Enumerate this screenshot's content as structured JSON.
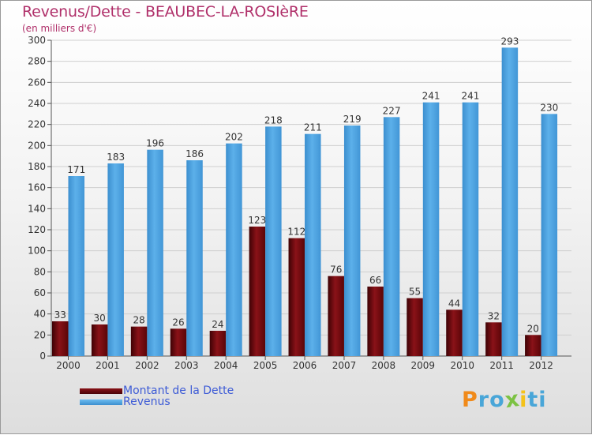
{
  "title": "Revenus/Dette - BEAUBEC-LA-ROSIèRE",
  "subtitle": "(en milliers d'€)",
  "logo": {
    "letters": [
      "P",
      "r",
      "o",
      "x",
      "i",
      "t",
      "i"
    ],
    "colors": [
      "#f08a1a",
      "#49a6d8",
      "#49a6d8",
      "#7cc243",
      "#f4c21a",
      "#49a6d8",
      "#49a6d8"
    ]
  },
  "legend": {
    "dette_label": "Montant de la Dette",
    "revenus_label": "Revenus"
  },
  "chart_data": {
    "type": "bar",
    "title": "Revenus/Dette - BEAUBEC-LA-ROSIèRE",
    "subtitle": "(en milliers d'€)",
    "xlabel": "",
    "ylabel": "",
    "ylim": [
      0,
      300
    ],
    "yticks": [
      0,
      20,
      40,
      60,
      80,
      100,
      120,
      140,
      160,
      180,
      200,
      220,
      240,
      260,
      280,
      300
    ],
    "grid": true,
    "legend_position": "bottom-left",
    "categories": [
      "2000",
      "2001",
      "2002",
      "2003",
      "2004",
      "2005",
      "2006",
      "2007",
      "2008",
      "2009",
      "2010",
      "2011",
      "2012"
    ],
    "series": [
      {
        "name": "Montant de la Dette",
        "color": "#7a0c10",
        "values": [
          33,
          30,
          28,
          26,
          24,
          123,
          112,
          76,
          66,
          55,
          44,
          32,
          20
        ]
      },
      {
        "name": "Revenus",
        "color": "#4ea3e0",
        "values": [
          171,
          183,
          196,
          186,
          202,
          218,
          211,
          219,
          227,
          241,
          241,
          293,
          230
        ]
      }
    ]
  }
}
